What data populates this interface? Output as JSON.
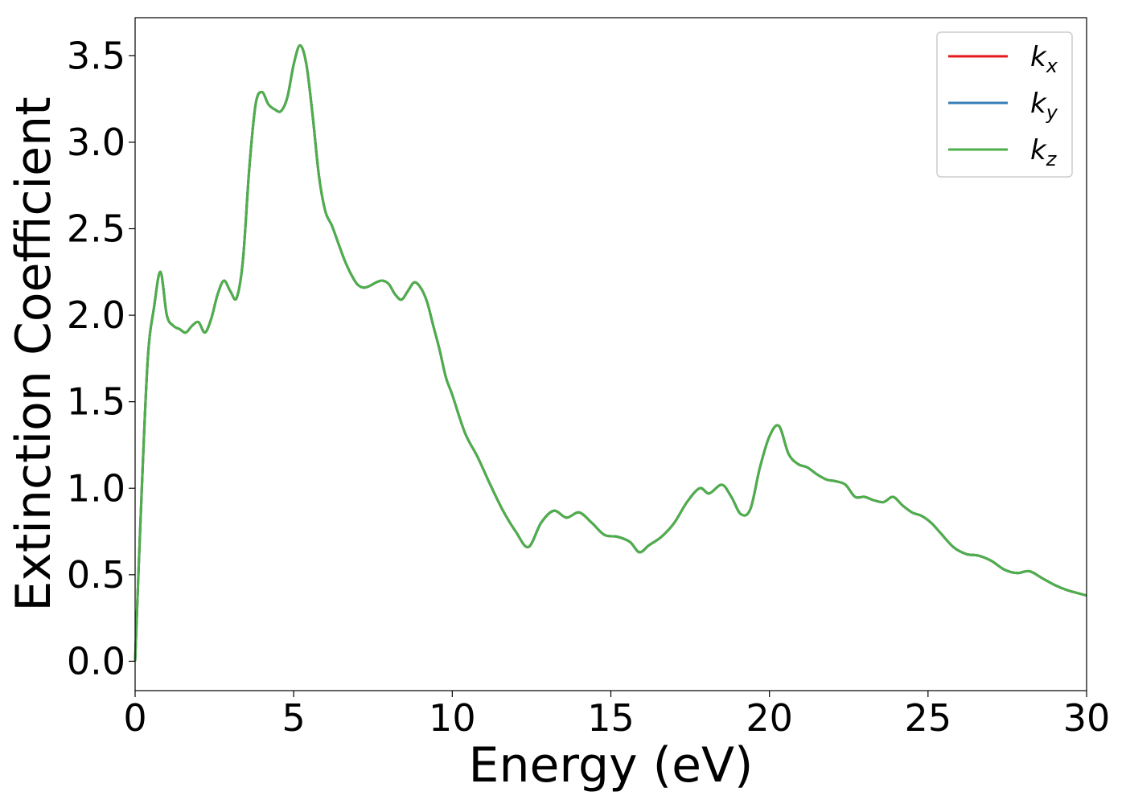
{
  "chart_data": {
    "type": "line",
    "xlabel": "Energy (eV)",
    "ylabel": "Extinction Coefficient",
    "xlim": [
      0,
      30
    ],
    "ylim": [
      -0.17,
      3.72
    ],
    "xticks": [
      0,
      5,
      10,
      15,
      20,
      25,
      30
    ],
    "xtick_labels": [
      "0",
      "5",
      "10",
      "15",
      "20",
      "25",
      "30"
    ],
    "yticks": [
      0.0,
      0.5,
      1.0,
      1.5,
      2.0,
      2.5,
      3.0,
      3.5
    ],
    "ytick_labels": [
      "0.0",
      "0.5",
      "1.0",
      "1.5",
      "2.0",
      "2.5",
      "3.0",
      "3.5"
    ],
    "grid": false,
    "legend_position": "top-right",
    "x": [
      0,
      0.2,
      0.4,
      0.6,
      0.8,
      1.0,
      1.2,
      1.4,
      1.6,
      1.8,
      2.0,
      2.2,
      2.4,
      2.6,
      2.8,
      3.0,
      3.2,
      3.4,
      3.6,
      3.8,
      4.0,
      4.2,
      4.4,
      4.6,
      4.8,
      5.0,
      5.2,
      5.4,
      5.6,
      5.8,
      6.0,
      6.2,
      6.4,
      6.6,
      6.8,
      7.0,
      7.2,
      7.4,
      7.6,
      7.8,
      8.0,
      8.2,
      8.4,
      8.6,
      8.8,
      9.0,
      9.2,
      9.4,
      9.6,
      9.8,
      10.0,
      10.4,
      10.8,
      11.2,
      11.6,
      12.0,
      12.4,
      12.8,
      13.2,
      13.6,
      14.0,
      14.4,
      14.8,
      15.2,
      15.6,
      15.9,
      16.2,
      16.6,
      17.0,
      17.4,
      17.8,
      18.1,
      18.5,
      18.8,
      19.1,
      19.4,
      19.7,
      20.0,
      20.3,
      20.6,
      20.9,
      21.2,
      21.5,
      21.8,
      22.1,
      22.4,
      22.7,
      23.0,
      23.3,
      23.6,
      23.9,
      24.2,
      24.5,
      24.8,
      25.1,
      25.4,
      25.8,
      26.2,
      26.6,
      27.0,
      27.4,
      27.8,
      28.2,
      28.6,
      29.0,
      29.4,
      29.8,
      30.0
    ],
    "series": [
      {
        "name": "k_x",
        "color": "#e41a1c",
        "values": [
          0.0,
          0.95,
          1.75,
          2.05,
          2.25,
          2.0,
          1.94,
          1.92,
          1.9,
          1.94,
          1.96,
          1.9,
          1.98,
          2.12,
          2.2,
          2.14,
          2.1,
          2.32,
          2.85,
          3.22,
          3.29,
          3.22,
          3.19,
          3.18,
          3.26,
          3.45,
          3.56,
          3.45,
          3.15,
          2.8,
          2.6,
          2.52,
          2.42,
          2.32,
          2.24,
          2.18,
          2.16,
          2.17,
          2.19,
          2.2,
          2.18,
          2.12,
          2.09,
          2.14,
          2.19,
          2.16,
          2.08,
          1.94,
          1.8,
          1.64,
          1.54,
          1.32,
          1.18,
          1.02,
          0.87,
          0.75,
          0.66,
          0.8,
          0.87,
          0.83,
          0.86,
          0.8,
          0.73,
          0.72,
          0.69,
          0.63,
          0.67,
          0.72,
          0.8,
          0.92,
          1.0,
          0.97,
          1.02,
          0.95,
          0.85,
          0.88,
          1.12,
          1.3,
          1.36,
          1.2,
          1.14,
          1.12,
          1.08,
          1.05,
          1.04,
          1.02,
          0.95,
          0.95,
          0.93,
          0.92,
          0.95,
          0.9,
          0.86,
          0.84,
          0.8,
          0.74,
          0.66,
          0.62,
          0.61,
          0.58,
          0.53,
          0.51,
          0.52,
          0.48,
          0.44,
          0.41,
          0.39,
          0.38
        ]
      },
      {
        "name": "k_y",
        "color": "#377eb8",
        "values": [
          0.0,
          0.95,
          1.75,
          2.05,
          2.25,
          2.0,
          1.94,
          1.92,
          1.9,
          1.94,
          1.96,
          1.9,
          1.98,
          2.12,
          2.2,
          2.14,
          2.1,
          2.32,
          2.85,
          3.22,
          3.29,
          3.22,
          3.19,
          3.18,
          3.26,
          3.45,
          3.56,
          3.45,
          3.15,
          2.8,
          2.6,
          2.52,
          2.42,
          2.32,
          2.24,
          2.18,
          2.16,
          2.17,
          2.19,
          2.2,
          2.18,
          2.12,
          2.09,
          2.14,
          2.19,
          2.16,
          2.08,
          1.94,
          1.8,
          1.64,
          1.54,
          1.32,
          1.18,
          1.02,
          0.87,
          0.75,
          0.66,
          0.8,
          0.87,
          0.83,
          0.86,
          0.8,
          0.73,
          0.72,
          0.69,
          0.63,
          0.67,
          0.72,
          0.8,
          0.92,
          1.0,
          0.97,
          1.02,
          0.95,
          0.85,
          0.88,
          1.12,
          1.3,
          1.36,
          1.2,
          1.14,
          1.12,
          1.08,
          1.05,
          1.04,
          1.02,
          0.95,
          0.95,
          0.93,
          0.92,
          0.95,
          0.9,
          0.86,
          0.84,
          0.8,
          0.74,
          0.66,
          0.62,
          0.61,
          0.58,
          0.53,
          0.51,
          0.52,
          0.48,
          0.44,
          0.41,
          0.39,
          0.38
        ]
      },
      {
        "name": "k_z",
        "color": "#4daf4a",
        "values": [
          0.0,
          0.95,
          1.75,
          2.05,
          2.25,
          2.0,
          1.94,
          1.92,
          1.9,
          1.94,
          1.96,
          1.9,
          1.98,
          2.12,
          2.2,
          2.14,
          2.1,
          2.32,
          2.85,
          3.22,
          3.29,
          3.22,
          3.19,
          3.18,
          3.26,
          3.45,
          3.56,
          3.45,
          3.15,
          2.8,
          2.6,
          2.52,
          2.42,
          2.32,
          2.24,
          2.18,
          2.16,
          2.17,
          2.19,
          2.2,
          2.18,
          2.12,
          2.09,
          2.14,
          2.19,
          2.16,
          2.08,
          1.94,
          1.8,
          1.64,
          1.54,
          1.32,
          1.18,
          1.02,
          0.87,
          0.75,
          0.66,
          0.8,
          0.87,
          0.83,
          0.86,
          0.8,
          0.73,
          0.72,
          0.69,
          0.63,
          0.67,
          0.72,
          0.8,
          0.92,
          1.0,
          0.97,
          1.02,
          0.95,
          0.85,
          0.88,
          1.12,
          1.3,
          1.36,
          1.2,
          1.14,
          1.12,
          1.08,
          1.05,
          1.04,
          1.02,
          0.95,
          0.95,
          0.93,
          0.92,
          0.95,
          0.9,
          0.86,
          0.84,
          0.8,
          0.74,
          0.66,
          0.62,
          0.61,
          0.58,
          0.53,
          0.51,
          0.52,
          0.48,
          0.44,
          0.41,
          0.39,
          0.38
        ]
      }
    ],
    "legend": [
      {
        "base": "k",
        "sub": "x",
        "color": "#e41a1c"
      },
      {
        "base": "k",
        "sub": "y",
        "color": "#377eb8"
      },
      {
        "base": "k",
        "sub": "z",
        "color": "#4daf4a"
      }
    ]
  }
}
